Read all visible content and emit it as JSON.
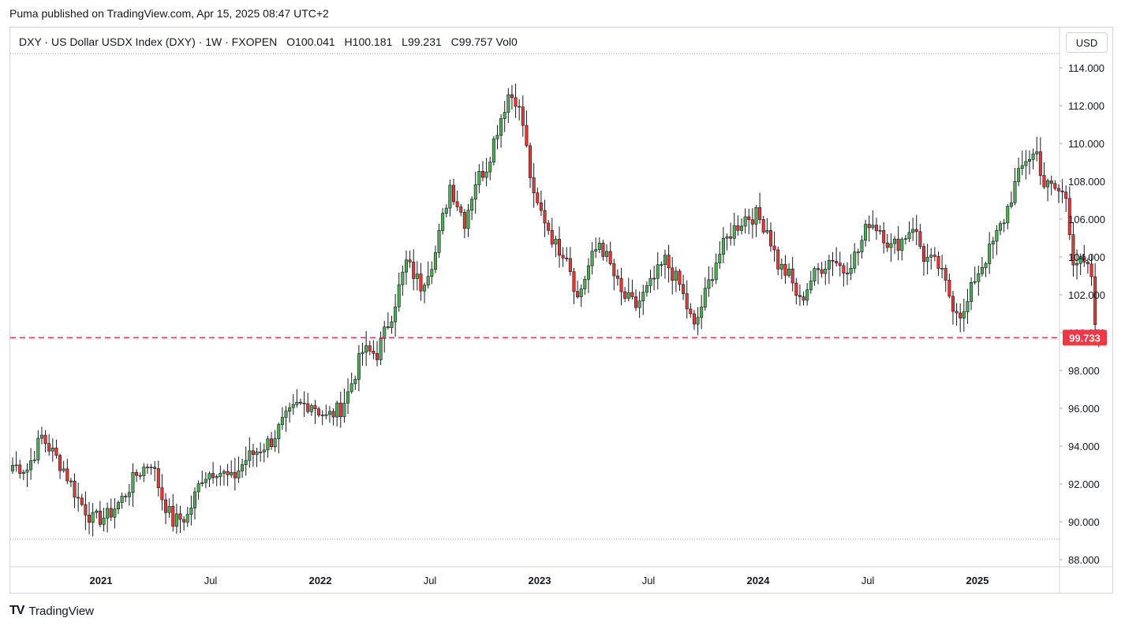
{
  "header": {
    "published": "Puma published on TradingView.com, Apr 15, 2025 08:47 UTC+2"
  },
  "legend": {
    "symbol": "DXY · US Dollar USDX Index (DXY) · 1W · FXOPEN",
    "open_label": "O",
    "open": "100.041",
    "high_label": "H",
    "high": "100.181",
    "low_label": "L",
    "low": "99.231",
    "close_label": "C",
    "close": "99.757",
    "vol": "Vol0"
  },
  "currency_button": "USD",
  "footer": {
    "brand": "TradingView",
    "logo": "TV"
  },
  "colors": {
    "up": "#4caf50",
    "down": "#e53935",
    "body_up": "#388e3c",
    "body_down": "#c62828",
    "price_line": "#f23645"
  },
  "chart_data": {
    "type": "candlestick",
    "yticks": [
      "114.000",
      "112.000",
      "110.000",
      "108.000",
      "106.000",
      "104.000",
      "102.000",
      "100.000",
      "98.000",
      "96.000",
      "94.000",
      "92.000",
      "90.000",
      "88.000"
    ],
    "xticks": [
      "2021",
      "Jul",
      "2022",
      "Jul",
      "2023",
      "Jul",
      "2024",
      "Jul",
      "2025"
    ],
    "xticks_bold": [
      "2021",
      "2022",
      "2023",
      "2024",
      "2025"
    ],
    "last_price": "99.733",
    "last_price_value": 99.733,
    "ylim": [
      88,
      114
    ],
    "anchor_points": [
      [
        0,
        93.0
      ],
      [
        4,
        92.8
      ],
      [
        8,
        94.5
      ],
      [
        14,
        92.8
      ],
      [
        18,
        91.2
      ],
      [
        22,
        90.1
      ],
      [
        26,
        90.3
      ],
      [
        30,
        91.2
      ],
      [
        34,
        92.5
      ],
      [
        38,
        93.2
      ],
      [
        41,
        91.3
      ],
      [
        44,
        90.0
      ],
      [
        48,
        90.3
      ],
      [
        52,
        92.4
      ],
      [
        56,
        92.8
      ],
      [
        60,
        92.2
      ],
      [
        64,
        93.3
      ],
      [
        68,
        93.9
      ],
      [
        71,
        94.3
      ],
      [
        74,
        95.2
      ],
      [
        78,
        96.1
      ],
      [
        82,
        96.3
      ],
      [
        86,
        95.5
      ],
      [
        90,
        96.0
      ],
      [
        92,
        96.8
      ],
      [
        96,
        99.0
      ],
      [
        100,
        98.9
      ],
      [
        104,
        101.0
      ],
      [
        108,
        103.7
      ],
      [
        112,
        102.5
      ],
      [
        116,
        104.2
      ],
      [
        120,
        107.8
      ],
      [
        124,
        105.9
      ],
      [
        127,
        108.0
      ],
      [
        130,
        108.8
      ],
      [
        133,
        110.8
      ],
      [
        136,
        112.6
      ],
      [
        138,
        112.4
      ],
      [
        140,
        111.0
      ],
      [
        143,
        107.0
      ],
      [
        146,
        106.0
      ],
      [
        149,
        104.6
      ],
      [
        152,
        104.2
      ],
      [
        155,
        101.8
      ],
      [
        158,
        103.5
      ],
      [
        161,
        104.8
      ],
      [
        164,
        103.5
      ],
      [
        167,
        102.0
      ],
      [
        171,
        101.4
      ],
      [
        175,
        102.5
      ],
      [
        179,
        103.8
      ],
      [
        183,
        102.5
      ],
      [
        187,
        100.2
      ],
      [
        190,
        102.0
      ],
      [
        193,
        103.8
      ],
      [
        197,
        105.3
      ],
      [
        201,
        106.1
      ],
      [
        204,
        106.2
      ],
      [
        207,
        105.5
      ],
      [
        210,
        103.6
      ],
      [
        213,
        103.0
      ],
      [
        216,
        101.6
      ],
      [
        219,
        102.8
      ],
      [
        222,
        103.5
      ],
      [
        225,
        104.0
      ],
      [
        228,
        103.3
      ],
      [
        232,
        104.3
      ],
      [
        235,
        105.9
      ],
      [
        238,
        105.5
      ],
      [
        241,
        104.5
      ],
      [
        244,
        104.9
      ],
      [
        247,
        105.7
      ],
      [
        250,
        104.0
      ],
      [
        254,
        103.5
      ],
      [
        258,
        101.5
      ],
      [
        261,
        100.9
      ],
      [
        264,
        102.9
      ],
      [
        268,
        104.3
      ],
      [
        272,
        106.0
      ],
      [
        275,
        107.8
      ],
      [
        278,
        109.2
      ],
      [
        281,
        109.5
      ],
      [
        283,
        107.8
      ],
      [
        286,
        107.6
      ],
      [
        289,
        107.2
      ],
      [
        291,
        103.9
      ],
      [
        294,
        103.5
      ],
      [
        296,
        103.0
      ],
      [
        297,
        100.1
      ],
      [
        298,
        99.76
      ]
    ]
  }
}
